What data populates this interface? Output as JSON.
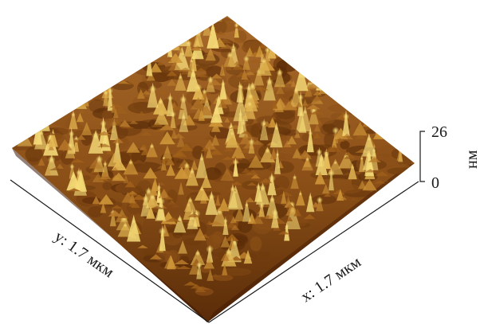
{
  "figure": {
    "type": "afm-3d-topography",
    "x_axis_label": "x: 1.7 мкм",
    "y_axis_label": "y: 1.7 мкм",
    "z_axis": {
      "max_label": "26",
      "min_label": "0",
      "unit": "нм",
      "range": [
        0,
        26
      ]
    },
    "colors": {
      "low": "#4a1e05",
      "mid": "#a0601a",
      "high": "#f6dc78",
      "axis": "#1a1a1a"
    }
  }
}
